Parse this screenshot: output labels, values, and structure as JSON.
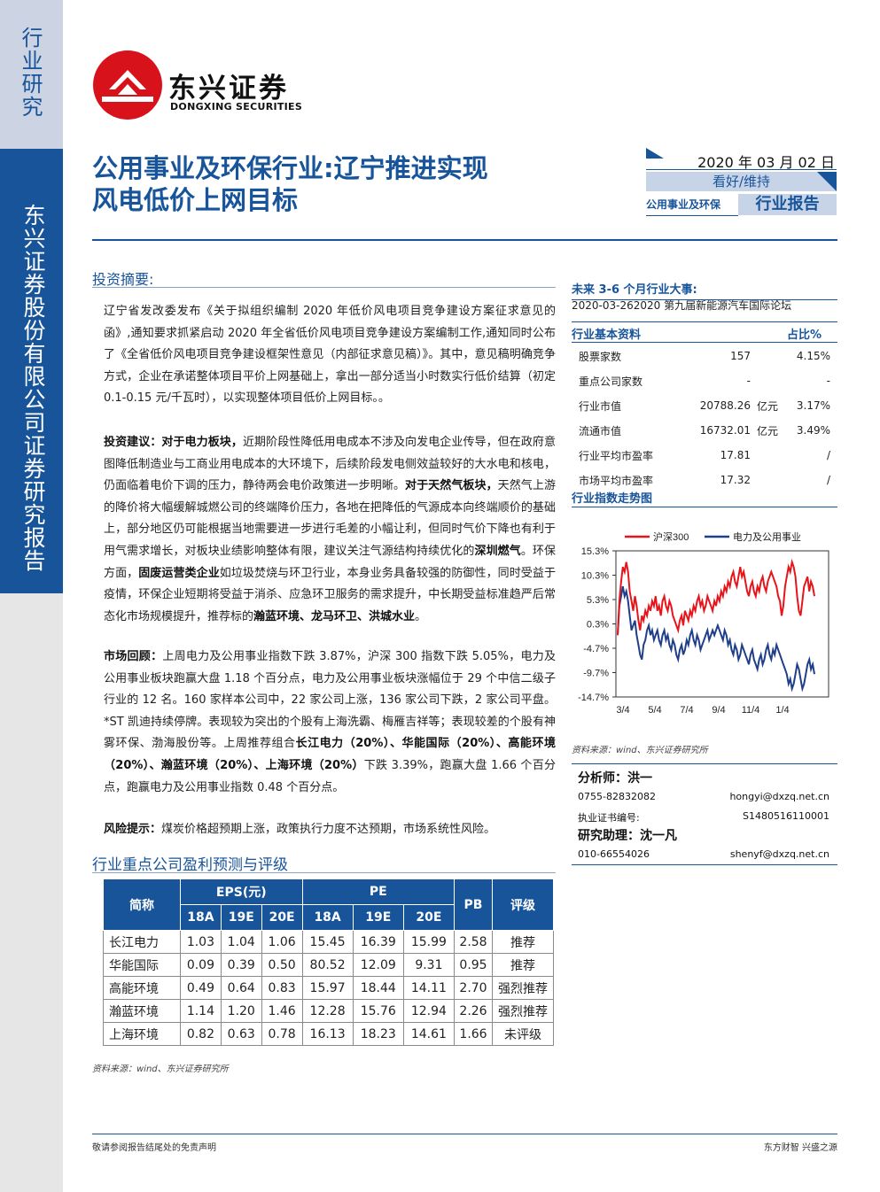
{
  "sidebar": {
    "top_label": "行业研究",
    "company_label": "东兴证券股份有限公司证券研究报告"
  },
  "logo": {
    "cn": "东兴证券",
    "en": "DONGXING SECURITIES"
  },
  "title": {
    "line1": "公用事业及环保行业:辽宁推进实现",
    "line2": "风电低价上网目标"
  },
  "header": {
    "date": "2020 年 03 月 02 日",
    "rating": "看好/维持",
    "category": "公用事业及环保",
    "report_type": "行业报告"
  },
  "summary": {
    "heading": "投资摘要:",
    "p1": "辽宁省发改委发布《关于拟组织编制 2020 年低价风电项目竞争建设方案征求意见的函》,通知要求抓紧启动 2020 年全省低价风电项目竞争建设方案编制工作,通知同时公布了《全省低价风电项目竞争建设框架性意见（内部征求意见稿）》。其中，意见稿明确竞争方式，企业在承诺整体项目平价上网基础上，拿出一部分适当小时数实行低价结算（初定 0.1-0.15 元/千瓦时），以实现整体项目低价上网目标。。",
    "p2_lead": "投资建议：对于电力板块，",
    "p2_a": "近期阶段性降低用电成本不涉及向发电企业传导，但在政府意图降低制造业与工商业用电成本的大环境下，后续阶段发电侧效益较好的大水电和核电，仍面临着电价下调的压力，静待两会电价政策进一步明晰。",
    "p2_b_lead": "对于天然气板块，",
    "p2_b": "天然气上游的降价将大幅缓解城燃公司的终端降价压力，各地在把降低的气源成本向终端顺价的基础上，部分地区仍可能根据当地需要进一步进行毛差的小幅让利，但同时气价下降也有利于用气需求增长，对板块业绩影响整体有限，建议关注气源结构持续优化的",
    "p2_b_end": "深圳燃气",
    "p2_c_mid": "。环保方面，",
    "p2_c_lead": "固废运营类企业",
    "p2_c": "如垃圾焚烧与环卫行业，本身业务具备较强的防御性，同时受益于疫情，环保企业短期将受益于消杀、应急环卫服务的需求提升，中长期受益标准趋严后常态化市场规模提升，推荐标的",
    "p2_c_end": "瀚蓝环境、龙马环卫、洪城水业",
    "p2_c_tail": "。",
    "p3_lead": "市场回顾：",
    "p3": "上周电力及公用事业指数下跌 3.87%，沪深 300 指数下跌 5.05%，电力及公用事业板块跑赢大盘 1.18 个百分点，电力及公用事业板块涨幅位于 29 个中信二级子行业的 12 名。160 家样本公司中，22 家公司上涨，136 家公司下跌，2 家公司平盘。*ST 凯迪持续停牌。表现较为突出的个股有上海洗霸、梅雁吉祥等；表现较差的个股有神雾环保、渤海股份等。上周推荐组合",
    "p3_bold": "长江电力（20%）、华能国际（20%）、高能环境（20%）、瀚蓝环境（20%）、上海环境（20%）",
    "p3_tail": "下跌 3.39%，跑赢大盘 1.66 个百分点，跑赢电力及公用事业指数 0.48 个百分点。",
    "p4_lead": "风险提示：",
    "p4": "煤炭价格超预期上涨，政策执行力度不达预期，市场系统性风险。"
  },
  "events": {
    "heading": "未来 3-6 个月行业大事:",
    "item": "2020-03-262020 第九届新能源汽车国际论坛"
  },
  "industry_info": {
    "heading": "行业基本资料",
    "ratio_label": "占比%",
    "rows": [
      {
        "label": "股票家数",
        "value": "157",
        "unit": "",
        "pct": "4.15%"
      },
      {
        "label": "重点公司家数",
        "value": "-",
        "unit": "",
        "pct": "-"
      },
      {
        "label": "行业市值",
        "value": "20788.26",
        "unit": "亿元",
        "pct": "3.17%"
      },
      {
        "label": "流通市值",
        "value": "16732.01",
        "unit": "亿元",
        "pct": "3.49%"
      },
      {
        "label": "行业平均市盈率",
        "value": "17.81",
        "unit": "",
        "pct": "/"
      },
      {
        "label": "市场平均市盈率",
        "value": "17.32",
        "unit": "",
        "pct": "/"
      }
    ]
  },
  "chart_heading": "行业指数走势图",
  "chart_data": {
    "type": "line",
    "x_ticks": [
      "3/4",
      "5/4",
      "7/4",
      "9/4",
      "11/4",
      "1/4"
    ],
    "y_ticks": [
      "15.3%",
      "10.3%",
      "5.3%",
      "0.3%",
      "-4.7%",
      "-9.7%",
      "-14.7%"
    ],
    "ylim": [
      -14.7,
      15.3
    ],
    "series": [
      {
        "name": "沪深300",
        "color": "#e8141c",
        "values": [
          -2,
          5,
          9,
          12,
          11,
          13,
          11,
          7,
          5,
          3,
          6,
          4,
          1,
          -1,
          2,
          1,
          3,
          2,
          4,
          3,
          5,
          4,
          6,
          3,
          4,
          2,
          5,
          6,
          4,
          3,
          5,
          4,
          2,
          1,
          0,
          -1,
          1,
          2,
          0,
          3,
          2,
          1,
          3,
          2,
          4,
          3,
          5,
          6,
          4,
          5,
          3,
          4,
          6,
          5,
          4,
          3,
          5,
          4,
          6,
          5,
          7,
          6,
          8,
          7,
          9,
          8,
          10,
          11,
          9,
          8,
          10,
          12,
          10,
          11,
          9,
          7,
          6,
          8,
          9,
          7,
          6,
          8,
          7,
          9,
          10,
          8,
          7,
          9,
          10,
          11,
          10,
          9,
          8,
          6,
          5,
          2,
          4,
          8,
          10,
          12,
          11,
          13,
          12,
          10,
          6,
          3,
          2,
          5,
          8,
          9,
          10,
          7,
          9,
          8,
          6
        ]
      },
      {
        "name": "电力及公用事业",
        "color": "#1f3f8a",
        "values": [
          -2,
          4,
          6,
          8,
          6,
          7,
          5,
          2,
          -1,
          0,
          1,
          -2,
          -4,
          -6,
          -7,
          -4,
          -3,
          -1,
          0,
          -2,
          -1,
          -3,
          -2,
          -1,
          -3,
          -4,
          -2,
          -1,
          -3,
          -2,
          -4,
          -5,
          -3,
          -4,
          -6,
          -7,
          -5,
          -4,
          -6,
          -5,
          -3,
          -4,
          -2,
          -1,
          -3,
          -4,
          -2,
          -3,
          -5,
          -4,
          -3,
          -2,
          -1,
          -3,
          -2,
          -1,
          -2,
          -1,
          0,
          -1,
          -2,
          -3,
          -1,
          -2,
          -4,
          -3,
          -5,
          -6,
          -4,
          -5,
          -7,
          -6,
          -4,
          -5,
          -6,
          -7,
          -8,
          -6,
          -5,
          -7,
          -8,
          -9,
          -7,
          -6,
          -8,
          -7,
          -5,
          -4,
          -6,
          -7,
          -5,
          -6,
          -4,
          -5,
          -6,
          -7,
          -8,
          -9,
          -10,
          -12,
          -11,
          -13,
          -12,
          -10,
          -8,
          -9,
          -11,
          -13,
          -12,
          -10,
          -8,
          -7,
          -9,
          -8,
          -10
        ]
      }
    ]
  },
  "chart_source": "资料来源：wind、东兴证券研究所",
  "analyst": {
    "label": "分析师：洪一",
    "phone": "0755-82832082",
    "email": "hongyi@dxzq.net.cn",
    "cert_label": "执业证书编号:",
    "cert": "S1480516110001"
  },
  "assistant": {
    "label": "研究助理：沈一凡",
    "phone": "010-66554026",
    "email": "shenyf@dxzq.net.cn"
  },
  "forecast": {
    "heading": "行业重点公司盈利预测与评级",
    "col_name": "简称",
    "col_eps": "EPS(元)",
    "col_pe": "PE",
    "col_pb": "PB",
    "col_rating": "评级",
    "years": [
      "18A",
      "19E",
      "20E"
    ],
    "rows": [
      {
        "name": "长江电力",
        "eps": [
          "1.03",
          "1.04",
          "1.06"
        ],
        "pe": [
          "15.45",
          "16.39",
          "15.99"
        ],
        "pb": "2.58",
        "rating": "推荐"
      },
      {
        "name": "华能国际",
        "eps": [
          "0.09",
          "0.39",
          "0.50"
        ],
        "pe": [
          "80.52",
          "12.09",
          "9.31"
        ],
        "pb": "0.95",
        "rating": "推荐"
      },
      {
        "name": "高能环境",
        "eps": [
          "0.49",
          "0.64",
          "0.83"
        ],
        "pe": [
          "15.97",
          "18.44",
          "14.11"
        ],
        "pb": "2.70",
        "rating": "强烈推荐"
      },
      {
        "name": "瀚蓝环境",
        "eps": [
          "1.14",
          "1.20",
          "1.46"
        ],
        "pe": [
          "12.28",
          "15.76",
          "12.94"
        ],
        "pb": "2.26",
        "rating": "强烈推荐"
      },
      {
        "name": "上海环境",
        "eps": [
          "0.82",
          "0.63",
          "0.78"
        ],
        "pe": [
          "16.13",
          "18.23",
          "14.61"
        ],
        "pb": "1.66",
        "rating": "未评级"
      }
    ],
    "source": "资料来源：wind、东兴证券研究所"
  },
  "footer": {
    "left": "敬请参阅报告结尾处的免责声明",
    "right": "东方财智  兴盛之源"
  }
}
